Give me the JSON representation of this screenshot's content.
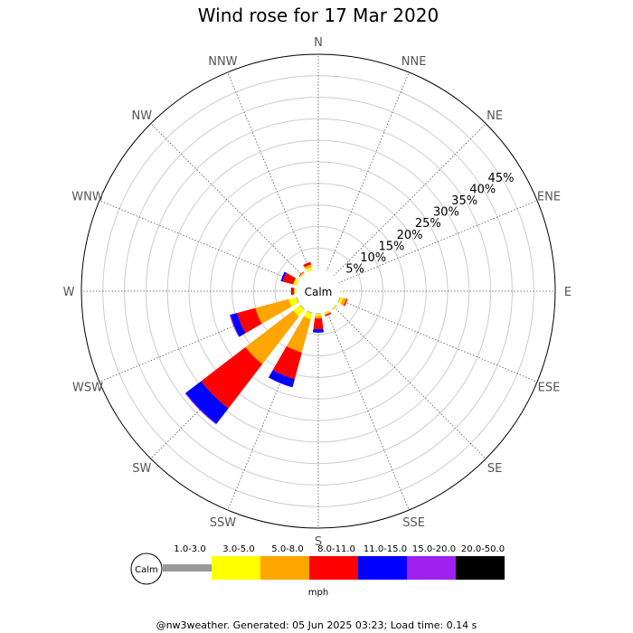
{
  "footer": "@nw3weather. Generated: 05 Jun 2025 03:23; Load time: 0.14 s",
  "chart_data": {
    "type": "wind-rose",
    "title": "Wind rose for 17 Mar 2020",
    "center_label": "Calm",
    "directions": [
      "N",
      "NNE",
      "NE",
      "ENE",
      "E",
      "ESE",
      "SE",
      "SSE",
      "S",
      "SSW",
      "SW",
      "WSW",
      "W",
      "WNW",
      "NW",
      "NNW"
    ],
    "radial_ticks": [
      "5%",
      "10%",
      "15%",
      "20%",
      "25%",
      "30%",
      "35%",
      "40%",
      "45%"
    ],
    "radial_values": [
      5,
      10,
      15,
      20,
      25,
      30,
      35,
      40,
      45
    ],
    "radial_max": 50,
    "unit": "mph",
    "bins": [
      {
        "label": "1.0-3.0",
        "color": "#999999"
      },
      {
        "label": "3.0-5.0",
        "color": "#ffff00"
      },
      {
        "label": "5.0-8.0",
        "color": "#ffa500"
      },
      {
        "label": "8.0-11.0",
        "color": "#ff0000"
      },
      {
        "label": "11.0-15.0",
        "color": "#0000ff"
      },
      {
        "label": "15.0-20.0",
        "color": "#a020f0"
      },
      {
        "label": "20.0-50.0",
        "color": "#000000"
      }
    ],
    "calm_pct": 1.2,
    "series": [
      {
        "direction": "NNW",
        "values": [
          0.2,
          0.6,
          0.6,
          0.6,
          0.0,
          0.0,
          0.0
        ]
      },
      {
        "direction": "NW",
        "values": [
          0.2,
          0.3,
          0.0,
          0.2,
          0.0,
          0.0,
          0.0
        ]
      },
      {
        "direction": "WNW",
        "values": [
          0.2,
          0.8,
          0.0,
          2.5,
          0.5,
          0.0,
          0.0
        ]
      },
      {
        "direction": "W",
        "values": [
          0.2,
          0.4,
          0.0,
          0.5,
          0.2,
          0.0,
          0.0
        ]
      },
      {
        "direction": "WSW",
        "values": [
          0.3,
          1.8,
          8.0,
          4.4,
          1.6,
          0.2,
          0.0
        ]
      },
      {
        "direction": "SW",
        "values": [
          0.3,
          2.0,
          14.0,
          13.0,
          4.5,
          0.2,
          0.0
        ]
      },
      {
        "direction": "SSW",
        "values": [
          0.3,
          1.4,
          8.0,
          6.4,
          2.0,
          0.0,
          0.0
        ]
      },
      {
        "direction": "S",
        "values": [
          0.3,
          0.4,
          0.6,
          2.5,
          0.8,
          0.0,
          0.0
        ]
      },
      {
        "direction": "SSE",
        "values": [
          0.2,
          0.3,
          0.2,
          0.3,
          0.0,
          0.0,
          0.0
        ]
      },
      {
        "direction": "SE",
        "values": [
          0.2,
          0.2,
          0.1,
          0.0,
          0.0,
          0.0,
          0.0
        ]
      },
      {
        "direction": "ESE",
        "values": [
          0.3,
          0.6,
          0.8,
          0.3,
          0.0,
          0.0,
          0.0
        ]
      },
      {
        "direction": "E",
        "values": [
          0.0,
          0.0,
          0.0,
          0.0,
          0.0,
          0.0,
          0.0
        ]
      },
      {
        "direction": "ENE",
        "values": [
          0.0,
          0.0,
          0.0,
          0.0,
          0.0,
          0.0,
          0.0
        ]
      },
      {
        "direction": "NE",
        "values": [
          0.0,
          0.0,
          0.0,
          0.0,
          0.0,
          0.0,
          0.0
        ]
      },
      {
        "direction": "NNE",
        "values": [
          0.0,
          0.0,
          0.0,
          0.0,
          0.0,
          0.0,
          0.0
        ]
      },
      {
        "direction": "N",
        "values": [
          0.0,
          0.0,
          0.0,
          0.0,
          0.0,
          0.0,
          0.0
        ]
      }
    ]
  }
}
